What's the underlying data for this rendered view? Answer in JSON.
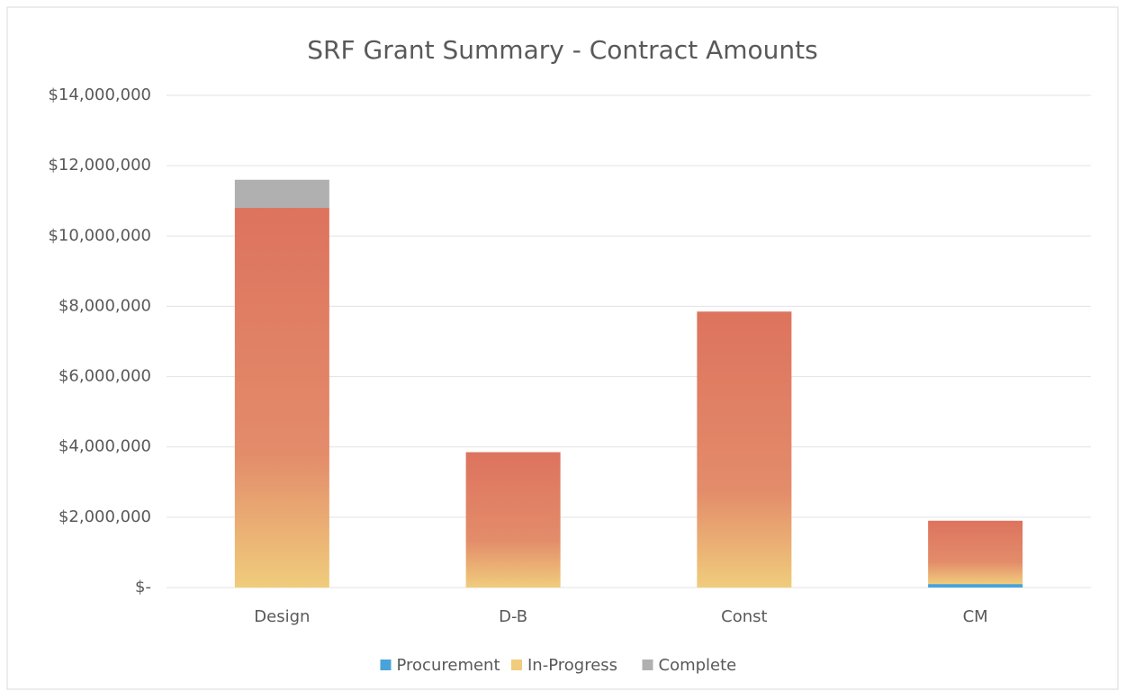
{
  "chart_data": {
    "type": "stacked_bar",
    "title": "SRF Grant Summary - Contract Amounts",
    "categories": [
      "Design",
      "D-B",
      "Const",
      "CM"
    ],
    "series": [
      {
        "name": "Procurement",
        "color": "#4aa3d8",
        "values": [
          0,
          0,
          0,
          100000
        ]
      },
      {
        "name": "In-Progress",
        "color": "#f0cc7c",
        "values": [
          10800000,
          3850000,
          7850000,
          1800000
        ]
      },
      {
        "name": "Complete",
        "color": "#b0b0b0",
        "values": [
          800000,
          0,
          0,
          0
        ]
      }
    ],
    "ylim": [
      0,
      14000000
    ],
    "yticks": [
      {
        "value": 0,
        "label": "$-"
      },
      {
        "value": 2000000,
        "label": "$2,000,000"
      },
      {
        "value": 4000000,
        "label": "$4,000,000"
      },
      {
        "value": 6000000,
        "label": "$6,000,000"
      },
      {
        "value": 8000000,
        "label": "$8,000,000"
      },
      {
        "value": 10000000,
        "label": "$10,000,000"
      },
      {
        "value": 12000000,
        "label": "$12,000,000"
      },
      {
        "value": 14000000,
        "label": "$14,000,000"
      }
    ],
    "grid": true,
    "legend": "bottom"
  }
}
